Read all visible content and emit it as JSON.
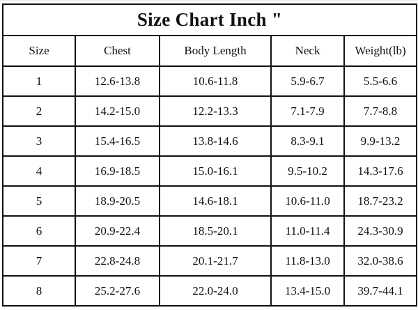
{
  "title": "Size Chart Inch \"",
  "columns": [
    "Size",
    "Chest",
    "Body Length",
    "Neck",
    "Weight(lb)"
  ],
  "rows": [
    [
      "1",
      "12.6-13.8",
      "10.6-11.8",
      "5.9-6.7",
      "5.5-6.6"
    ],
    [
      "2",
      "14.2-15.0",
      "12.2-13.3",
      "7.1-7.9",
      "7.7-8.8"
    ],
    [
      "3",
      "15.4-16.5",
      "13.8-14.6",
      "8.3-9.1",
      "9.9-13.2"
    ],
    [
      "4",
      "16.9-18.5",
      "15.0-16.1",
      "9.5-10.2",
      "14.3-17.6"
    ],
    [
      "5",
      "18.9-20.5",
      "14.6-18.1",
      "10.6-11.0",
      "18.7-23.2"
    ],
    [
      "6",
      "20.9-22.4",
      "18.5-20.1",
      "11.0-11.4",
      "24.3-30.9"
    ],
    [
      "7",
      "22.8-24.8",
      "20.1-21.7",
      "11.8-13.0",
      "32.0-38.6"
    ],
    [
      "8",
      "25.2-27.6",
      "22.0-24.0",
      "13.4-15.0",
      "39.7-44.1"
    ]
  ]
}
